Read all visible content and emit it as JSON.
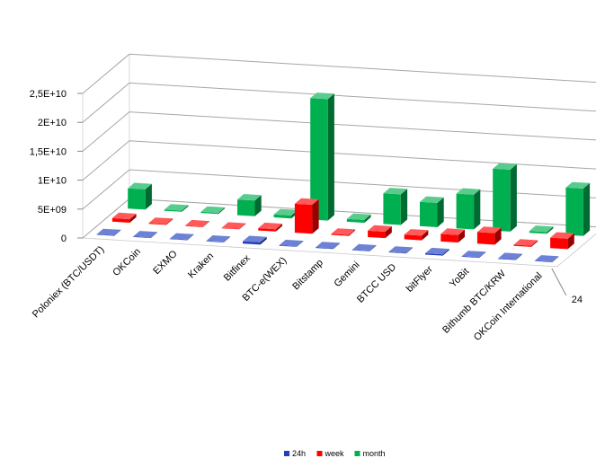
{
  "chart_data": {
    "type": "bar",
    "subtype": "3d-clustered",
    "title": "",
    "xlabel": "",
    "ylabel": "",
    "ylim": [
      0,
      25000000000
    ],
    "yticks": [
      0,
      5000000000,
      10000000000,
      15000000000,
      20000000000,
      25000000000
    ],
    "ytick_labels": [
      "0",
      "5E+09",
      "1E+10",
      "1,5E+10",
      "2E+10",
      "2,5E+10"
    ],
    "z_axis_visible_label": "24",
    "grid": true,
    "legend_position": "bottom",
    "categories": [
      "Poloniex (BTC/USDT)",
      "OKCoin",
      "EXMO",
      "Kraken",
      "Bitfinex",
      "BTC-e(WEX)",
      "Bitstamp",
      "Gemini",
      "BTCC USD",
      "bitFlyer",
      "YoBit",
      "Bithumb BTC/KRW",
      "OKCoin International"
    ],
    "series": [
      {
        "name": "24h",
        "color": "#1f3fbf",
        "values": [
          80000000,
          40000000,
          20000000,
          30000000,
          400000000,
          100000000,
          110000000,
          90000000,
          90000000,
          220000000,
          60000000,
          120000000,
          70000000
        ]
      },
      {
        "name": "week",
        "color": "#ff0000",
        "values": [
          600000000,
          150000000,
          100000000,
          90000000,
          400000000,
          5000000000,
          180000000,
          1100000000,
          800000000,
          1300000000,
          2000000000,
          200000000,
          1800000000
        ]
      },
      {
        "name": "month",
        "color": "#00b050",
        "values": [
          3500000000,
          200000000,
          200000000,
          2700000000,
          500000000,
          21000000000,
          500000000,
          5300000000,
          4200000000,
          6000000000,
          10700000000,
          300000000,
          8200000000
        ]
      }
    ]
  }
}
